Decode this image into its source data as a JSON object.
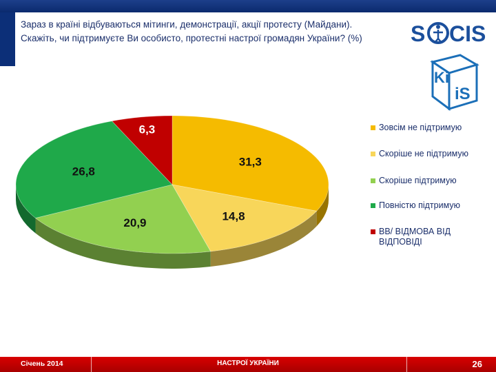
{
  "header": {
    "question": "Зараз в країні відбуваються мітинги, демонстрації, акції протесту (Майдани). Скажіть, чи підтримуєте Ви особисто, протестні настрої громадян України? (%)"
  },
  "logos": {
    "socis": "SOCIS",
    "kiis": "KIIS"
  },
  "chart_data": {
    "type": "pie",
    "title": "",
    "unit": "%",
    "slices": [
      {
        "label": "Зовсім не підтримую",
        "value": 31.3,
        "value_text": "31,3",
        "color": "#f5bb00"
      },
      {
        "label": "Скоріше не підтримую",
        "value": 14.8,
        "value_text": "14,8",
        "color": "#f8d65a"
      },
      {
        "label": "Скоріше підтримую",
        "value": 20.9,
        "value_text": "20,9",
        "color": "#92d050"
      },
      {
        "label": "Повністю підтримую",
        "value": 26.8,
        "value_text": "26,8",
        "color": "#1fa94a"
      },
      {
        "label": "ВВ/ ВІДМОВА ВІД ВІДПОВІДІ",
        "value": 6.3,
        "value_text": "6,3",
        "color": "#c00000"
      }
    ],
    "legend_position": "right",
    "style": "3d"
  },
  "footer": {
    "date": "Січень 2014",
    "center": "НАСТРОЇ УКРАЇНИ",
    "page": "26"
  }
}
